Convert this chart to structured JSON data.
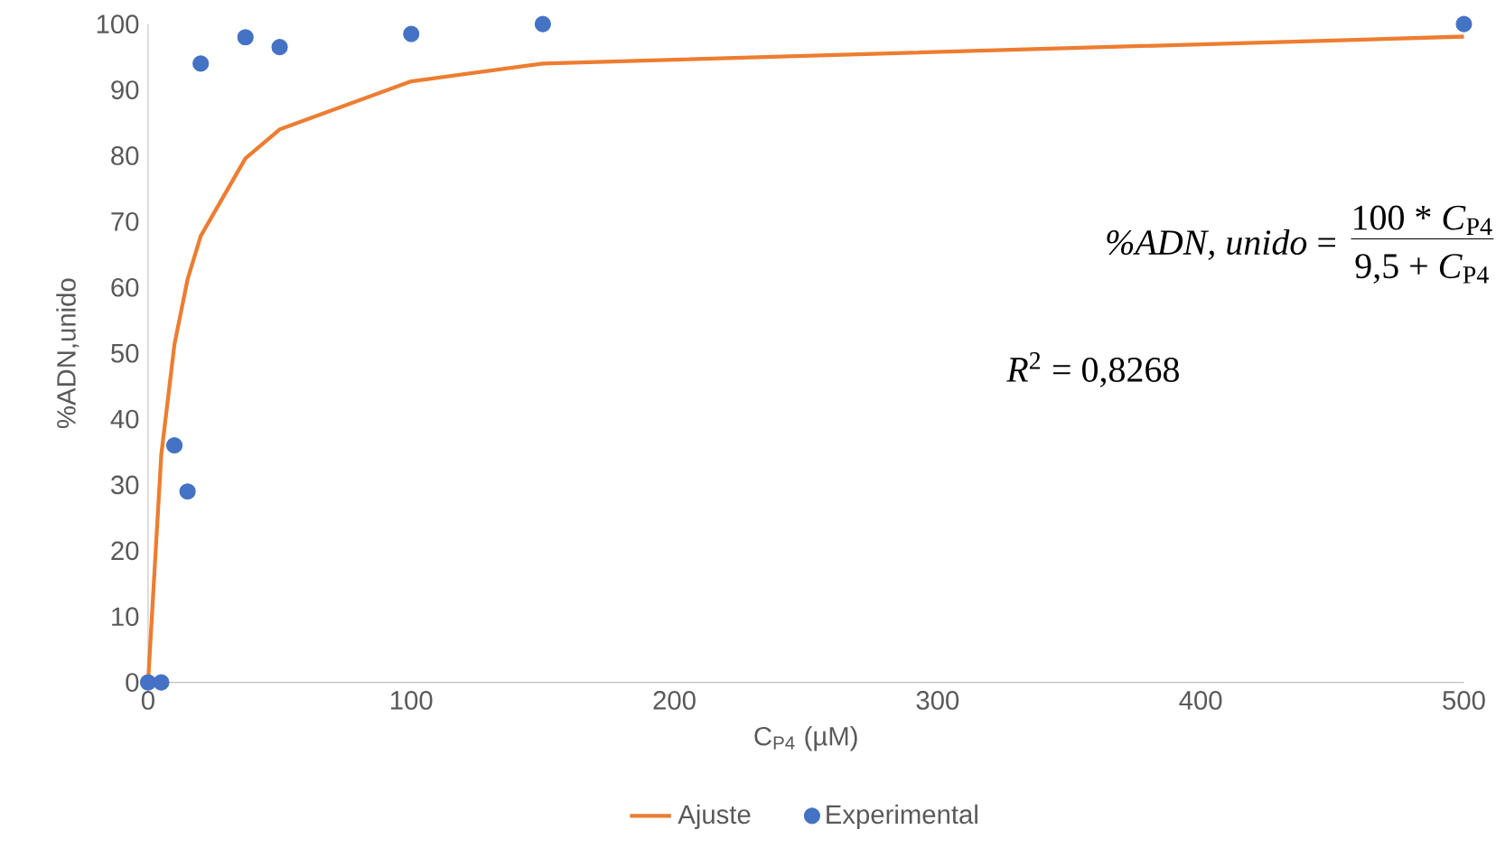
{
  "chart_data": {
    "type": "scatter",
    "xlabel": "C$_{P4}$ (µM)",
    "ylabel": "%ADN,unido",
    "xlim": [
      0,
      500
    ],
    "xticks": [
      0,
      100,
      200,
      300,
      400,
      500
    ],
    "ylim": [
      0,
      100
    ],
    "yticks": [
      0,
      10,
      20,
      30,
      40,
      50,
      60,
      70,
      80,
      90,
      100
    ],
    "grid": false,
    "legend": "bottom",
    "annotations": [
      "*%ADN, unido* =",
      "100 * *C*$_{P4}$",
      "9,5 + *C*$_{P4}$",
      "*R*$^{2}$ = 0,8268"
    ],
    "series": [
      {
        "name": "Ajuste",
        "type": "line",
        "color": "#ed7d31",
        "marker": "none",
        "line_style": "solid",
        "x": [
          0,
          5,
          10,
          15,
          20,
          37,
          50,
          100,
          150,
          500
        ],
        "values": [
          0,
          34.5,
          51.3,
          61.2,
          67.8,
          79.6,
          84,
          91.3,
          94,
          98.1
        ]
      },
      {
        "name": "Experimental",
        "color": "#4472c4",
        "marker": "circle",
        "x": [
          0,
          5,
          10,
          15,
          20,
          37,
          50,
          100,
          150,
          500
        ],
        "values": [
          0,
          0,
          36,
          29,
          94,
          98,
          96.5,
          98.5,
          100,
          100
        ]
      }
    ]
  }
}
